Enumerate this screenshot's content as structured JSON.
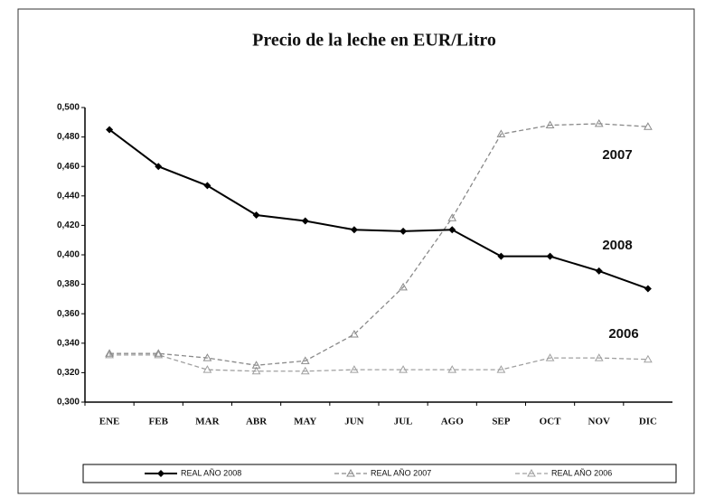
{
  "chart_data": {
    "type": "line",
    "title": "Precio de la leche en EUR/Litro",
    "categories": [
      "ENE",
      "FEB",
      "MAR",
      "ABR",
      "MAY",
      "JUN",
      "JUL",
      "AGO",
      "SEP",
      "OCT",
      "NOV",
      "DIC"
    ],
    "series": [
      {
        "name": "REAL AÑO 2008",
        "color": "#000000",
        "line_style": "solid",
        "marker": "diamond",
        "values": [
          0.485,
          0.46,
          0.447,
          0.427,
          0.423,
          0.417,
          0.416,
          0.417,
          0.399,
          0.399,
          0.389,
          0.377
        ]
      },
      {
        "name": "REAL AÑO 2007",
        "color": "#8a8a8a",
        "line_style": "dashed",
        "marker": "triangle",
        "values": [
          0.333,
          0.333,
          0.33,
          0.325,
          0.328,
          0.346,
          0.378,
          0.425,
          0.482,
          0.488,
          0.489,
          0.487
        ]
      },
      {
        "name": "REAL AÑO 2006",
        "color": "#a0a0a0",
        "line_style": "dashed",
        "marker": "triangle",
        "values": [
          0.332,
          0.332,
          0.322,
          0.321,
          0.321,
          0.322,
          0.322,
          0.322,
          0.322,
          0.33,
          0.33,
          0.329
        ]
      }
    ],
    "annotations": [
      "2007",
      "2008",
      "2006"
    ],
    "ylim": [
      0.3,
      0.5
    ],
    "yticks": [
      {
        "value": 0.3,
        "label": "0,300"
      },
      {
        "value": 0.32,
        "label": "0,320"
      },
      {
        "value": 0.34,
        "label": "0,340"
      },
      {
        "value": 0.36,
        "label": "0,360"
      },
      {
        "value": 0.38,
        "label": "0,380"
      },
      {
        "value": 0.4,
        "label": "0,400"
      },
      {
        "value": 0.42,
        "label": "0,420"
      },
      {
        "value": 0.44,
        "label": "0,440"
      },
      {
        "value": 0.46,
        "label": "0,460"
      },
      {
        "value": 0.48,
        "label": "0,480"
      },
      {
        "value": 0.5,
        "label": "0,500"
      }
    ],
    "legend": "bottom"
  }
}
